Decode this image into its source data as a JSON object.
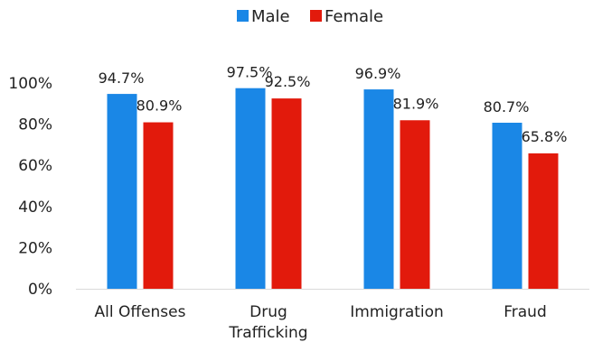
{
  "chart_data": {
    "type": "bar",
    "title": "",
    "xlabel": "",
    "ylabel": "",
    "ylim": [
      0,
      100
    ],
    "yticks": [
      0,
      20,
      40,
      60,
      80,
      100
    ],
    "ytick_labels": [
      "0%",
      "20%",
      "40%",
      "60%",
      "80%",
      "100%"
    ],
    "categories": [
      [
        "All Offenses"
      ],
      [
        "Drug",
        "Trafficking"
      ],
      [
        "Immigration"
      ],
      [
        "Fraud"
      ]
    ],
    "series": [
      {
        "name": "Male",
        "color": "#1a87e6",
        "values": [
          94.7,
          97.5,
          96.9,
          80.7
        ],
        "labels": [
          "94.7%",
          "97.5%",
          "96.9%",
          "80.7%"
        ]
      },
      {
        "name": "Female",
        "color": "#e21a0c",
        "values": [
          80.9,
          92.5,
          81.9,
          65.8
        ],
        "labels": [
          "80.9%",
          "92.5%",
          "81.9%",
          "65.8%"
        ]
      }
    ],
    "legend": {
      "position": "top-center"
    },
    "grid": false
  }
}
